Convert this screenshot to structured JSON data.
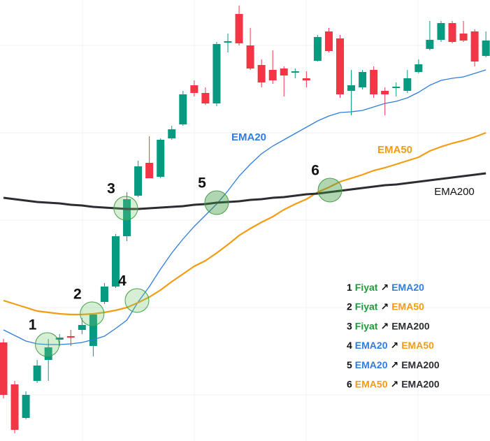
{
  "chart_data": {
    "type": "candlestick",
    "up_color": "#089981",
    "down_color": "#f23645",
    "price_color": "#1e9a3c",
    "ylim": [
      0,
      631
    ],
    "candles": {
      "open": [
        141,
        81,
        33,
        86,
        116,
        145,
        150,
        159,
        136,
        199,
        221,
        293,
        351,
        398,
        378,
        433,
        453,
        509,
        498,
        483,
        570,
        611,
        566,
        538,
        531,
        533,
        527,
        519,
        544,
        586,
        576,
        501,
        506,
        531,
        501,
        505,
        501,
        528,
        561,
        574,
        598,
        583,
        586,
        551
      ],
      "high": [
        146,
        86,
        71,
        116,
        146,
        153,
        159,
        176,
        183,
        226,
        296,
        356,
        401,
        436,
        433,
        451,
        501,
        516,
        506,
        571,
        583,
        623,
        591,
        546,
        559,
        536,
        533,
        529,
        581,
        591,
        581,
        531,
        531,
        536,
        506,
        513,
        531,
        546,
        601,
        601,
        601,
        601,
        589,
        586
      ],
      "low": [
        61,
        11,
        31,
        83,
        86,
        136,
        136,
        153,
        121,
        196,
        219,
        286,
        349,
        376,
        376,
        431,
        451,
        493,
        481,
        479,
        556,
        566,
        531,
        506,
        511,
        493,
        519,
        506,
        543,
        556,
        491,
        466,
        503,
        491,
        466,
        493,
        498,
        526,
        559,
        571,
        569,
        571,
        536,
        549
      ],
      "close": [
        66,
        16,
        66,
        108,
        134,
        148,
        148,
        166,
        181,
        221,
        293,
        346,
        393,
        376,
        431,
        446,
        496,
        498,
        483,
        568,
        572,
        569,
        533,
        513,
        516,
        523,
        529,
        516,
        578,
        558,
        496,
        509,
        528,
        496,
        496,
        507,
        519,
        539,
        574,
        598,
        571,
        573,
        543,
        573
      ]
    },
    "series": [
      {
        "name": "EMA20",
        "color": "#2f7ddf",
        "width": 1.3,
        "values": [
          159,
          151,
          143,
          139,
          138,
          138,
          139,
          141,
          145,
          150,
          161,
          173,
          199,
          221,
          246,
          269,
          289,
          307,
          323,
          339,
          358,
          379,
          396,
          411,
          422,
          431,
          440,
          449,
          458,
          465,
          470,
          471,
          473,
          478,
          483,
          486,
          491,
          499,
          509,
          516,
          519,
          521,
          526,
          531
        ]
      },
      {
        "name": "EMA50",
        "color": "#f39c12",
        "width": 2.2,
        "values": [
          201,
          196,
          191,
          186,
          184,
          182,
          181,
          181,
          182,
          184,
          187,
          191,
          198,
          206,
          216,
          228,
          239,
          250,
          258,
          269,
          281,
          294,
          304,
          313,
          321,
          331,
          339,
          346,
          356,
          363,
          371,
          376,
          381,
          387,
          391,
          396,
          401,
          406,
          415,
          421,
          426,
          430,
          435,
          441
        ]
      },
      {
        "name": "EMA200",
        "color": "#2b2d33",
        "width": 3,
        "values": [
          348,
          346,
          344,
          342,
          341,
          340,
          338,
          337,
          335,
          334,
          333,
          332,
          332,
          333,
          334,
          335,
          336,
          338,
          339,
          341,
          342,
          343,
          345,
          346,
          348,
          349,
          351,
          353,
          354,
          356,
          358,
          360,
          362,
          364,
          366,
          367,
          369,
          371,
          373,
          375,
          377,
          379,
          381,
          383
        ]
      }
    ],
    "annotations": [
      {
        "text": "1",
        "x": 3.9,
        "y": 138
      },
      {
        "text": "2",
        "x": 7.9,
        "y": 182
      },
      {
        "text": "3",
        "x": 10.9,
        "y": 333
      },
      {
        "text": "4",
        "x": 11.9,
        "y": 201
      },
      {
        "text": "5",
        "x": 19,
        "y": 341
      },
      {
        "text": "6",
        "x": 29.1,
        "y": 359
      }
    ],
    "legend": [
      {
        "number": "1",
        "from": "Fiyat",
        "arrow": "↗",
        "to": "EMA20"
      },
      {
        "number": "2",
        "from": "Fiyat",
        "arrow": "↗",
        "to": "EMA50"
      },
      {
        "number": "3",
        "from": "Fiyat",
        "arrow": "↗",
        "to": "EMA200"
      },
      {
        "number": "4",
        "from": "EMA20",
        "arrow": "↗",
        "to": "EMA50"
      },
      {
        "number": "5",
        "from": "EMA20",
        "arrow": "↗",
        "to": "EMA200"
      },
      {
        "number": "6",
        "from": "EMA50",
        "arrow": "↗",
        "to": "EMA200"
      }
    ]
  }
}
